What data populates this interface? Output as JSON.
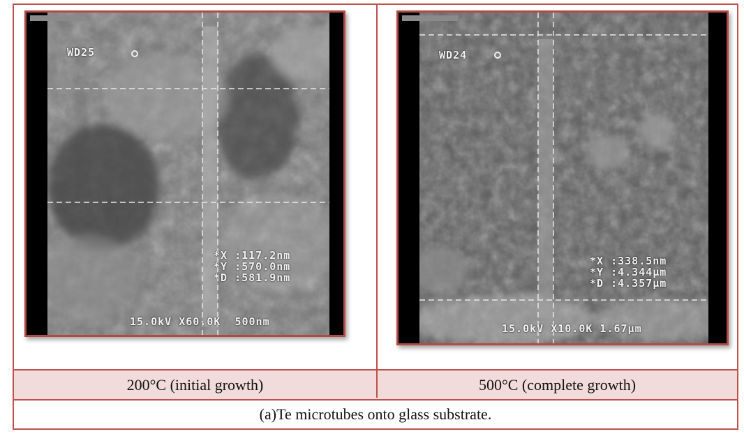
{
  "figure": {
    "panels": [
      {
        "wd": "WD25",
        "meas_x": "*X :117.2nm",
        "meas_y": "*Y :570.0nm",
        "meas_d": "*D :581.9nm",
        "scale": "15.0kV X60.0K  500nm",
        "label": "200°C (initial growth)"
      },
      {
        "wd": "WD24",
        "meas_x": "*X :338.5nm",
        "meas_y": "*Y :4.344µm",
        "meas_d": "*D :4.357µm",
        "scale": "15.0kV X10.0K 1.67µm",
        "label": "500°C (complete growth)"
      }
    ],
    "caption": "(a)Te microtubes onto glass substrate."
  }
}
